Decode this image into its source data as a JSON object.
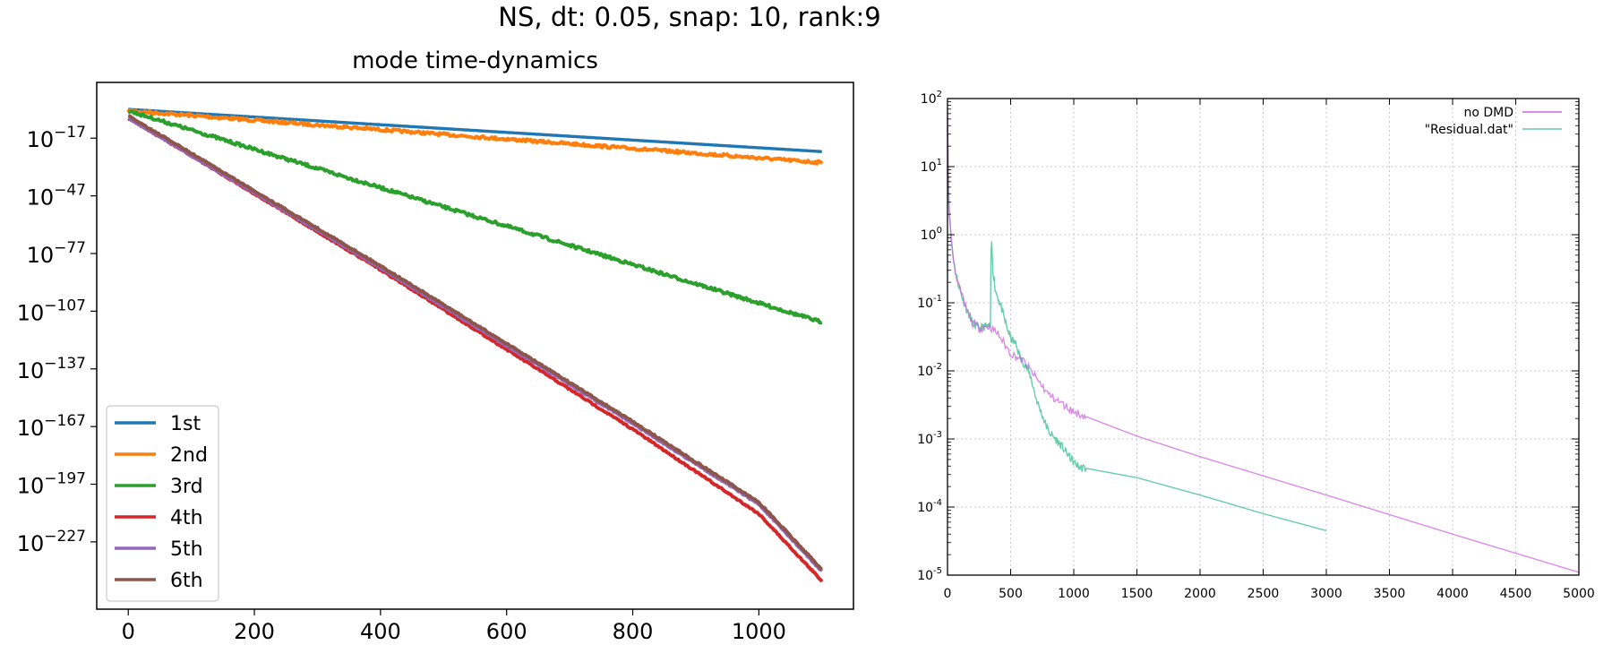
{
  "figure": {
    "suptitle": "NS, dt: 0.05, snap: 10, rank:9"
  },
  "chart_data": [
    {
      "type": "line",
      "title": "mode time-dynamics",
      "xlabel": "",
      "ylabel": "",
      "yscale": "log",
      "xlim": [
        -50,
        1150
      ],
      "ylim_exp": [
        -262,
        12
      ],
      "xticks": [
        0,
        200,
        400,
        600,
        800,
        1000
      ],
      "yticks": [
        {
          "exp": -17,
          "base": "10",
          "sup": "−17"
        },
        {
          "exp": -47,
          "base": "10",
          "sup": "−47"
        },
        {
          "exp": -77,
          "base": "10",
          "sup": "−77"
        },
        {
          "exp": -107,
          "base": "10",
          "sup": "−107"
        },
        {
          "exp": -137,
          "base": "10",
          "sup": "−137"
        },
        {
          "exp": -167,
          "base": "10",
          "sup": "−167"
        },
        {
          "exp": -197,
          "base": "10",
          "sup": "−197"
        },
        {
          "exp": -227,
          "base": "10",
          "sup": "−227"
        }
      ],
      "legend": {
        "position": "lower-left"
      },
      "series": [
        {
          "name": "1st",
          "color": "#1f77b4",
          "x": [
            0,
            1100
          ],
          "log10_y": [
            -2,
            -24
          ],
          "noise": 0
        },
        {
          "name": "2nd",
          "color": "#ff7f0e",
          "x": [
            0,
            1100
          ],
          "log10_y": [
            -2,
            -29
          ],
          "noise": 1.5
        },
        {
          "name": "3rd",
          "color": "#2ca02c",
          "x": [
            0,
            1100
          ],
          "log10_y": [
            -2,
            -112
          ],
          "noise": 1.5
        },
        {
          "name": "4th",
          "color": "#d62728",
          "x": [
            0,
            400,
            800,
            1000,
            1100
          ],
          "log10_y": [
            -6,
            -85,
            -168,
            -212,
            -247
          ],
          "noise": 0.8
        },
        {
          "name": "5th",
          "color": "#9467bd",
          "x": [
            0,
            400,
            800,
            1000,
            1100
          ],
          "log10_y": [
            -6,
            -84,
            -165,
            -207,
            -242
          ],
          "noise": 0.8
        },
        {
          "name": "6th",
          "color": "#8c564b",
          "x": [
            0,
            400,
            800,
            1000,
            1100
          ],
          "log10_y": [
            -5,
            -83,
            -164,
            -206,
            -241
          ],
          "noise": 0.8
        }
      ]
    },
    {
      "type": "line",
      "title": "",
      "xlabel": "",
      "ylabel": "",
      "yscale": "log",
      "xlim": [
        0,
        5000
      ],
      "ylim_exp": [
        -5,
        2
      ],
      "grid": true,
      "xticks": [
        0,
        500,
        1000,
        1500,
        2000,
        2500,
        3000,
        3500,
        4000,
        4500,
        5000
      ],
      "yticks": [
        {
          "exp": 2,
          "base": "10",
          "sup": "2"
        },
        {
          "exp": 1,
          "base": "10",
          "sup": "1"
        },
        {
          "exp": 0,
          "base": "10",
          "sup": "0"
        },
        {
          "exp": -1,
          "base": "10",
          "sup": "-1"
        },
        {
          "exp": -2,
          "base": "10",
          "sup": "-2"
        },
        {
          "exp": -3,
          "base": "10",
          "sup": "-3"
        },
        {
          "exp": -4,
          "base": "10",
          "sup": "-4"
        },
        {
          "exp": -5,
          "base": "10",
          "sup": "-5"
        }
      ],
      "legend": {
        "position": "top-right"
      },
      "series": [
        {
          "name": "no DMD",
          "color": "#cc66dd",
          "x": [
            0,
            10,
            30,
            60,
            100,
            150,
            200,
            250,
            300,
            340,
            400,
            450,
            500,
            600,
            700,
            800,
            1000,
            1500,
            2000,
            3000,
            4000,
            5000
          ],
          "y": [
            60,
            3,
            0.8,
            0.3,
            0.15,
            0.08,
            0.05,
            0.042,
            0.045,
            0.044,
            0.035,
            0.025,
            0.018,
            0.014,
            0.008,
            0.0045,
            0.0025,
            0.0011,
            0.00055,
            0.00015,
            4e-05,
            1.1e-05
          ]
        },
        {
          "name": "\"Residual.dat\"",
          "color": "#66ccaa",
          "x": [
            0,
            10,
            30,
            60,
            100,
            150,
            200,
            250,
            300,
            340,
            345,
            350,
            360,
            380,
            400,
            430,
            460,
            500,
            540,
            580,
            620,
            660,
            700,
            760,
            800,
            900,
            1000,
            1050,
            1100,
            1500,
            2000,
            2500,
            3000
          ],
          "y": [
            60,
            3,
            0.8,
            0.3,
            0.15,
            0.08,
            0.05,
            0.042,
            0.045,
            0.044,
            0.5,
            0.8,
            0.3,
            0.15,
            0.12,
            0.08,
            0.05,
            0.03,
            0.025,
            0.015,
            0.012,
            0.008,
            0.004,
            0.002,
            0.0013,
            0.0008,
            0.00045,
            0.00038,
            0.00037,
            0.00027,
            0.00015,
            8e-05,
            4.5e-05
          ]
        }
      ]
    }
  ]
}
